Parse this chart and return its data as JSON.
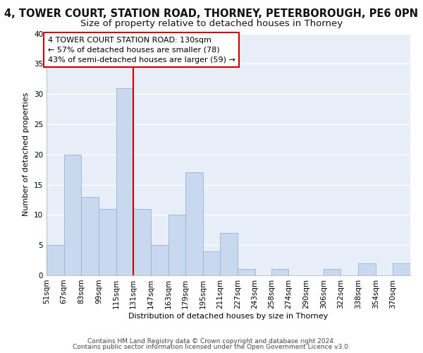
{
  "title1": "4, TOWER COURT, STATION ROAD, THORNEY, PETERBOROUGH, PE6 0PN",
  "title2": "Size of property relative to detached houses in Thorney",
  "xlabel": "Distribution of detached houses by size in Thorney",
  "ylabel": "Number of detached properties",
  "footer1": "Contains HM Land Registry data © Crown copyright and database right 2024.",
  "footer2": "Contains public sector information licensed under the Open Government Licence v3.0.",
  "annotation_line1": "4 TOWER COURT STATION ROAD: 130sqm",
  "annotation_line2": "← 57% of detached houses are smaller (78)",
  "annotation_line3": "43% of semi-detached houses are larger (59) →",
  "bar_color": "#c8d8ee",
  "bar_edge_color": "#9ab4ce",
  "vline_color": "#cc0000",
  "categories": [
    "51sqm",
    "67sqm",
    "83sqm",
    "99sqm",
    "115sqm",
    "131sqm",
    "147sqm",
    "163sqm",
    "179sqm",
    "195sqm",
    "211sqm",
    "227sqm",
    "243sqm",
    "258sqm",
    "274sqm",
    "290sqm",
    "306sqm",
    "322sqm",
    "338sqm",
    "354sqm",
    "370sqm"
  ],
  "values": [
    5,
    20,
    13,
    11,
    31,
    11,
    5,
    10,
    17,
    4,
    7,
    1,
    0,
    1,
    0,
    0,
    1,
    0,
    2,
    0,
    2
  ],
  "bin_width": 16,
  "x_starts": [
    51,
    67,
    83,
    99,
    115,
    131,
    147,
    163,
    179,
    195,
    211,
    227,
    243,
    258,
    274,
    290,
    306,
    322,
    338,
    354,
    370
  ],
  "ylim": [
    0,
    40
  ],
  "yticks": [
    0,
    5,
    10,
    15,
    20,
    25,
    30,
    35,
    40
  ],
  "bg_color": "#ffffff",
  "plot_bg_color": "#e8eef8",
  "grid_color": "#ffffff",
  "annotation_box_facecolor": "#ffffff",
  "annotation_box_edge": "#cc0000",
  "title1_fontsize": 10.5,
  "title2_fontsize": 9.5,
  "axis_label_fontsize": 8,
  "tick_fontsize": 7.5,
  "annotation_fontsize": 8,
  "footer_fontsize": 6.5
}
